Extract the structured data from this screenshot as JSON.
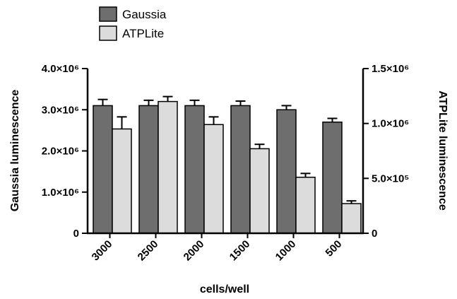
{
  "colors": {
    "gaussia": "#6e6e6e",
    "atplite": "#dcdcdc",
    "stroke": "#000000"
  },
  "chart_data": {
    "type": "bar",
    "categories": [
      "3000",
      "2500",
      "2000",
      "1500",
      "1000",
      "500"
    ],
    "series": [
      {
        "name": "Gaussia",
        "axis": "left",
        "values": [
          3100000,
          3100000,
          3100000,
          3100000,
          3000000,
          2700000
        ],
        "errors": [
          150000,
          130000,
          130000,
          110000,
          100000,
          90000
        ]
      },
      {
        "name": "ATPLite",
        "axis": "right",
        "values": [
          950000,
          1200000,
          990000,
          770000,
          510000,
          270000
        ],
        "errors": [
          110000,
          45000,
          70000,
          40000,
          35000,
          25000
        ]
      }
    ],
    "xlabel": "cells/well",
    "ylabel_left": "Gaussia luminescence",
    "ylabel_right": "ATPLite luminescence",
    "ylim_left": [
      0,
      4000000
    ],
    "ylim_right": [
      0,
      1500000
    ],
    "yticks_left": [
      "0",
      "1.0×10⁶",
      "2.0×10⁶",
      "3.0×10⁶",
      "4.0×10⁶"
    ],
    "yticks_right": [
      "0",
      "5.0×10⁵",
      "1.0×10⁶",
      "1.5×10⁶"
    ],
    "legend_position": "top-left",
    "grid": false
  }
}
